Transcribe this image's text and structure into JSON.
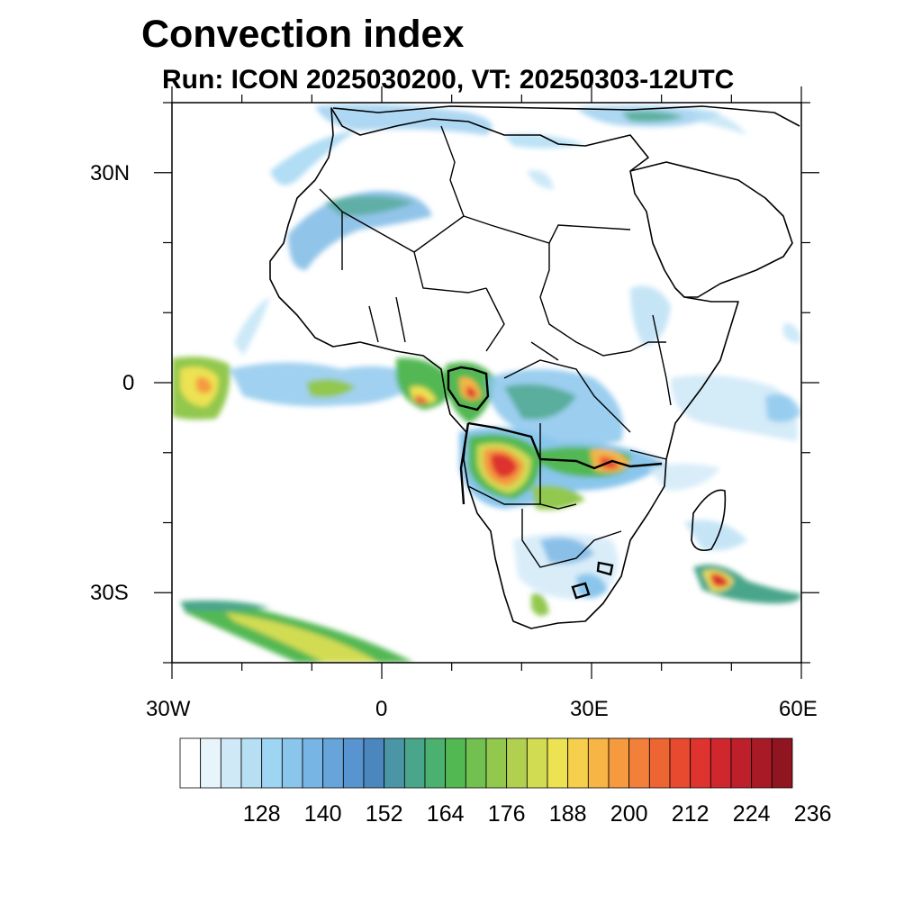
{
  "title": "Convection index",
  "subtitle": "Run: ICON 2025030200,  VT: 20250303-12UTC",
  "map": {
    "lon_range": [
      -30,
      60
    ],
    "lat_range": [
      -40,
      40
    ],
    "xtick_labels": [
      "30W",
      "0",
      "30E",
      "60E"
    ],
    "ytick_labels": [
      "30N",
      "0",
      "30S"
    ]
  },
  "colorbar": {
    "levels": [
      116,
      120,
      124,
      128,
      132,
      136,
      140,
      144,
      148,
      152,
      156,
      160,
      164,
      168,
      172,
      176,
      180,
      184,
      188,
      192,
      196,
      200,
      204,
      208,
      212,
      216,
      220,
      224,
      228,
      232,
      236
    ],
    "labels": [
      "128",
      "140",
      "152",
      "164",
      "176",
      "188",
      "200",
      "212",
      "224",
      "236"
    ],
    "colors": [
      "#ffffff",
      "#e8f4fb",
      "#cfe9f7",
      "#b6dff4",
      "#9ed5f2",
      "#8ac6ec",
      "#77b5e4",
      "#66a4da",
      "#5894cf",
      "#4c86bf",
      "#4a96a6",
      "#4aa68a",
      "#4ab26e",
      "#52b852",
      "#72c050",
      "#92c84e",
      "#b2d050",
      "#d2dc52",
      "#ece252",
      "#f6d04c",
      "#f7b546",
      "#f69a40",
      "#f2803a",
      "#ee6534",
      "#e84a30",
      "#de332e",
      "#cf272d",
      "#bd1f2b",
      "#a71a26",
      "#8f1520"
    ]
  }
}
